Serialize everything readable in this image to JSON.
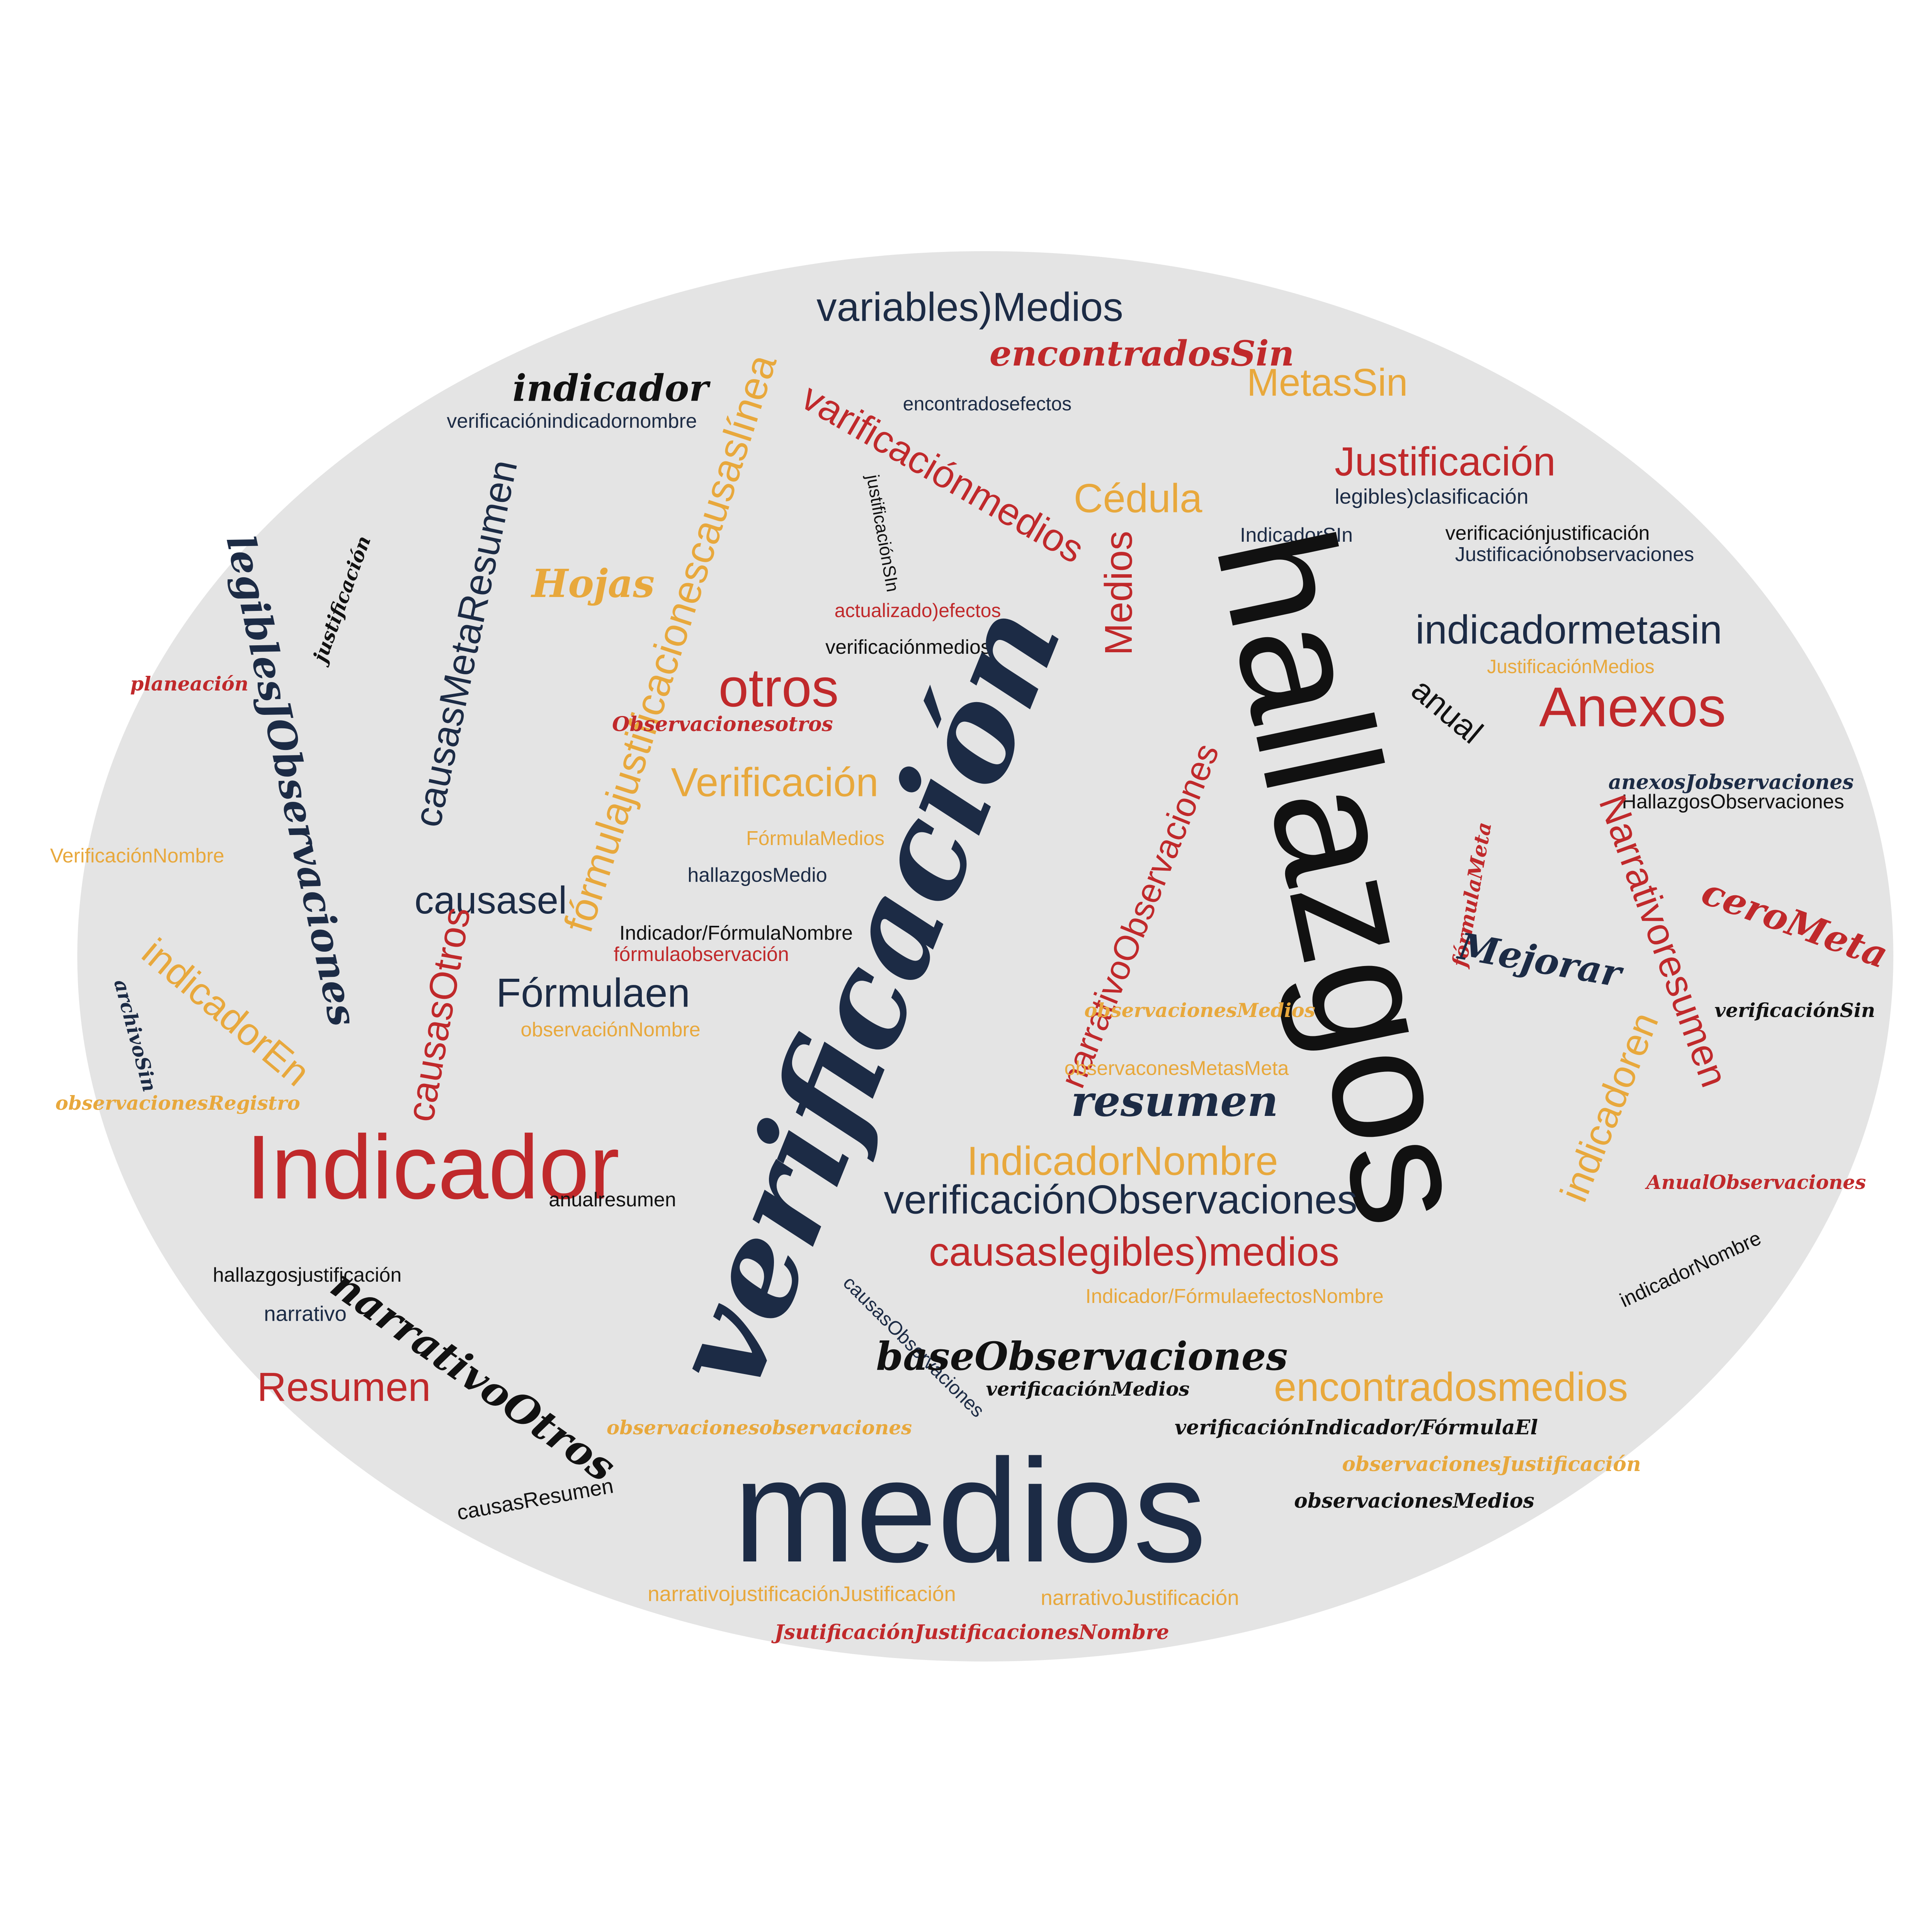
{
  "colors": {
    "background": "#e4e4e4",
    "navy": "#1c2b45",
    "red": "#c0292b",
    "gold": "#e8a83c",
    "black": "#111111"
  },
  "words": [
    {
      "text": "variables)Medios",
      "color": "navy"
    },
    {
      "text": "encontradosSin",
      "color": "red"
    },
    {
      "text": "MetasSin",
      "color": "gold"
    },
    {
      "text": "indicador",
      "color": "black"
    },
    {
      "text": "verificaciónindicadornombre",
      "color": "navy"
    },
    {
      "text": "varificaciónmedios",
      "color": "red"
    },
    {
      "text": "encontradosefectos",
      "color": "navy"
    },
    {
      "text": "fórmulajustificacionescausaslínea",
      "color": "gold"
    },
    {
      "text": "causasMetaResumen",
      "color": "navy"
    },
    {
      "text": "justificaciónSIn",
      "color": "black"
    },
    {
      "text": "Justificación",
      "color": "red"
    },
    {
      "text": "legibles)clasificación",
      "color": "navy"
    },
    {
      "text": "Cédula",
      "color": "gold"
    },
    {
      "text": "IndicadorSIn",
      "color": "navy"
    },
    {
      "text": "verificaciónjustificación",
      "color": "black"
    },
    {
      "text": "Justificaciónobservaciones",
      "color": "navy"
    },
    {
      "text": "hallazgos",
      "color": "black"
    },
    {
      "text": "Medios",
      "color": "red"
    },
    {
      "text": "justificación",
      "color": "black"
    },
    {
      "text": "legiblesJObservaciones",
      "color": "navy"
    },
    {
      "text": "Hojas",
      "color": "gold"
    },
    {
      "text": "actualizado)efectos",
      "color": "red"
    },
    {
      "text": "verificaciónmedios",
      "color": "black"
    },
    {
      "text": "indicadormetasin",
      "color": "navy"
    },
    {
      "text": "JustificaciónMedios",
      "color": "gold"
    },
    {
      "text": "planeación",
      "color": "red"
    },
    {
      "text": "otros",
      "color": "red"
    },
    {
      "text": "Observacionesotros",
      "color": "red"
    },
    {
      "text": "anual",
      "color": "black"
    },
    {
      "text": "Anexos",
      "color": "red"
    },
    {
      "text": "verificación",
      "color": "navy"
    },
    {
      "text": "Verificación",
      "color": "gold"
    },
    {
      "text": "anexosJobservaciones",
      "color": "navy"
    },
    {
      "text": "HallazgosObservaciones",
      "color": "black"
    },
    {
      "text": "FórmulaMedios",
      "color": "gold"
    },
    {
      "text": "hallazgosMedio",
      "color": "navy"
    },
    {
      "text": "narrativoObservaciones",
      "color": "red"
    },
    {
      "text": "Narrativoresumen",
      "color": "red"
    },
    {
      "text": "fórmulaMeta",
      "color": "red"
    },
    {
      "text": "VerificaciónNombre",
      "color": "gold"
    },
    {
      "text": "ceroMeta",
      "color": "red"
    },
    {
      "text": "causasel",
      "color": "navy"
    },
    {
      "text": "causasOtros",
      "color": "red"
    },
    {
      "text": "Indicador/FórmulaNombre",
      "color": "black"
    },
    {
      "text": "Mejorar",
      "color": "navy"
    },
    {
      "text": "indicadorEn",
      "color": "gold"
    },
    {
      "text": "fórmulaobservación",
      "color": "red"
    },
    {
      "text": "Fórmulaen",
      "color": "navy"
    },
    {
      "text": "archivoSin",
      "color": "navy"
    },
    {
      "text": "verificaciónSin",
      "color": "black"
    },
    {
      "text": "observacionesMedios",
      "color": "gold"
    },
    {
      "text": "observaciónNombre",
      "color": "gold"
    },
    {
      "text": "indicadoren",
      "color": "gold"
    },
    {
      "text": "observaconesMetasMeta",
      "color": "gold"
    },
    {
      "text": "observacionesRegistro",
      "color": "gold"
    },
    {
      "text": "resumen",
      "color": "navy"
    },
    {
      "text": "Indicador",
      "color": "red"
    },
    {
      "text": "IndicadorNombre",
      "color": "gold"
    },
    {
      "text": "AnualObservaciones",
      "color": "red"
    },
    {
      "text": "anualresumen",
      "color": "black"
    },
    {
      "text": "verificaciónObservaciones",
      "color": "navy"
    },
    {
      "text": "causaslegibles)medios",
      "color": "red"
    },
    {
      "text": "indicadorNombre",
      "color": "black"
    },
    {
      "text": "hallazgosjustificación",
      "color": "black"
    },
    {
      "text": "Indicador/FórmulaefectosNombre",
      "color": "gold"
    },
    {
      "text": "causasObservaciones",
      "color": "navy"
    },
    {
      "text": "narrativo",
      "color": "navy"
    },
    {
      "text": "narrativoOtros",
      "color": "black"
    },
    {
      "text": "baseObservaciones",
      "color": "black"
    },
    {
      "text": "Resumen",
      "color": "red"
    },
    {
      "text": "verificaciónMedios",
      "color": "black"
    },
    {
      "text": "encontradosmedios",
      "color": "gold"
    },
    {
      "text": "observacionesobservaciones",
      "color": "gold"
    },
    {
      "text": "verificaciónIndicador/FórmulaEl",
      "color": "black"
    },
    {
      "text": "observacionesJustificación",
      "color": "gold"
    },
    {
      "text": "medios",
      "color": "navy"
    },
    {
      "text": "causasResumen",
      "color": "black"
    },
    {
      "text": "observacionesMedios",
      "color": "black"
    },
    {
      "text": "narrativojustificaciónJustificación",
      "color": "gold"
    },
    {
      "text": "narrativoJustificación",
      "color": "gold"
    },
    {
      "text": "JsutificaciónJustificacionesNombre",
      "color": "red"
    }
  ]
}
